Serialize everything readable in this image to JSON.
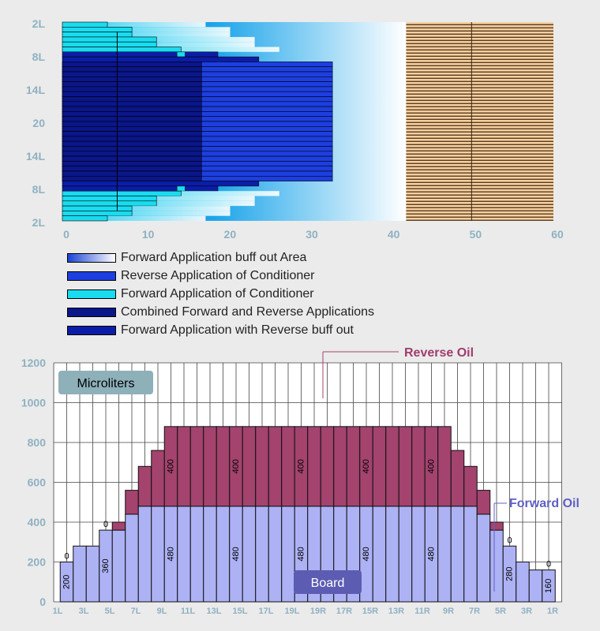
{
  "chart_data": [
    {
      "type": "bar",
      "orientation": "horizontal",
      "y_tick_labels": [
        "2L",
        "8L",
        "14L",
        "20",
        "14L",
        "8L",
        "2L"
      ],
      "x_ticks": [
        0,
        10,
        20,
        30,
        40,
        50,
        60
      ],
      "xlim": [
        0,
        60
      ],
      "rows": 40,
      "buff_out_start": 42,
      "legend": [
        {
          "label": "Forward Application buff out Area",
          "color": "#1c44d4",
          "gradient": true
        },
        {
          "label": "Reverse Application of Conditioner",
          "color": "#1d3fe0"
        },
        {
          "label": "Forward Application of Conditioner",
          "color": "#19dcf0"
        },
        {
          "label": "Combined Forward and Reverse Applications",
          "color": "#0a168a"
        },
        {
          "label": "Forward Application with Reverse buff out",
          "color": "#0b1da8"
        }
      ],
      "bands": [
        {
          "series": "Forward Application of Conditioner",
          "rows": [
            1,
            2,
            3,
            4,
            5,
            6
          ],
          "values": [
            5.5,
            8.5,
            8.5,
            11.5,
            11.5,
            14.5
          ]
        },
        {
          "series": "Forward Application with Reverse buff out",
          "rows": [
            7,
            8
          ],
          "values": [
            19,
            24
          ]
        },
        {
          "series": "Combined Forward and Reverse Applications",
          "values": [
            17,
            17
          ]
        },
        {
          "series": "Reverse Application of Conditioner",
          "values": [
            33
          ]
        }
      ]
    },
    {
      "type": "bar",
      "stacked": true,
      "categories": [
        "1L",
        "2L",
        "3L",
        "4L",
        "5L",
        "6L",
        "7L",
        "8L",
        "9L",
        "10L",
        "11L",
        "12L",
        "13L",
        "14L",
        "15L",
        "16L",
        "17L",
        "18L",
        "19L",
        "20",
        "19R",
        "18R",
        "17R",
        "16R",
        "15R",
        "14R",
        "13R",
        "12R",
        "11R",
        "10R",
        "9R",
        "8R",
        "7R",
        "6R",
        "5R",
        "4R",
        "3R",
        "2R",
        "1R"
      ],
      "x_tick_labels": [
        "1L",
        "3L",
        "5L",
        "7L",
        "9L",
        "11L",
        "13L",
        "15L",
        "17L",
        "19L",
        "19R",
        "17R",
        "15R",
        "13R",
        "11R",
        "9R",
        "7R",
        "5R",
        "3R",
        "1R"
      ],
      "series": [
        {
          "name": "Forward Oil",
          "color": "#adb2f5",
          "values": [
            200,
            280,
            280,
            360,
            360,
            440,
            480,
            480,
            480,
            480,
            480,
            480,
            480,
            480,
            480,
            480,
            480,
            480,
            480,
            480,
            480,
            480,
            480,
            480,
            480,
            480,
            480,
            480,
            480,
            480,
            480,
            480,
            440,
            360,
            280,
            200,
            160,
            160,
            0
          ]
        },
        {
          "name": "Reverse Oil",
          "color": "#a3436e",
          "values": [
            0,
            0,
            0,
            0,
            40,
            120,
            200,
            280,
            400,
            400,
            400,
            400,
            400,
            400,
            400,
            400,
            400,
            400,
            400,
            400,
            400,
            400,
            400,
            400,
            400,
            400,
            400,
            400,
            400,
            400,
            280,
            200,
            120,
            40,
            0,
            0,
            0,
            0,
            0
          ]
        }
      ],
      "value_labels": [
        {
          "category": "1L",
          "text": "200"
        },
        {
          "category": "1L",
          "text": "0",
          "placement": "above"
        },
        {
          "category": "4L",
          "text": "360"
        },
        {
          "category": "4L",
          "text": "0",
          "placement": "above"
        },
        {
          "category": "9L",
          "text": "480"
        },
        {
          "category": "9L",
          "text": "400"
        },
        {
          "category": "14L",
          "text": "480"
        },
        {
          "category": "14L",
          "text": "400"
        },
        {
          "category": "19L",
          "text": "480"
        },
        {
          "category": "19L",
          "text": "400"
        },
        {
          "category": "16R",
          "text": "480"
        },
        {
          "category": "16R",
          "text": "400"
        },
        {
          "category": "11R",
          "text": "480"
        },
        {
          "category": "11R",
          "text": "400"
        },
        {
          "category": "5R",
          "text": "280"
        },
        {
          "category": "5R",
          "text": "0",
          "placement": "above"
        },
        {
          "category": "2R",
          "text": "160"
        },
        {
          "category": "2R",
          "text": "0",
          "placement": "above"
        }
      ],
      "yticks": [
        0,
        200,
        400,
        600,
        800,
        1000,
        1200
      ],
      "ylim": [
        0,
        1200
      ],
      "ylabel": "Microliters",
      "xlabel": "Board",
      "annotations": {
        "reverse": "Reverse Oil",
        "forward": "Forward Oil"
      },
      "colors": {
        "label_box": "#8db0b9",
        "board_box": "#5c5cb3",
        "reverse_text": "#9f3d6c",
        "forward_text": "#6060c4"
      }
    }
  ]
}
